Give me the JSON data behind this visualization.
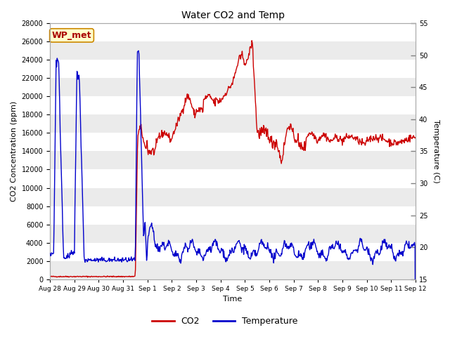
{
  "title": "Water CO2 and Temp",
  "xlabel": "Time",
  "ylabel_left": "CO2 Concentration (ppm)",
  "ylabel_right": "Temperature (C)",
  "ylim_left": [
    0,
    28000
  ],
  "ylim_right": [
    15,
    55
  ],
  "yticks_left": [
    0,
    2000,
    4000,
    6000,
    8000,
    10000,
    12000,
    14000,
    16000,
    18000,
    20000,
    22000,
    24000,
    26000,
    28000
  ],
  "yticks_right": [
    15,
    20,
    25,
    30,
    35,
    40,
    45,
    50,
    55
  ],
  "xtick_labels": [
    "Aug 28",
    "Aug 29",
    "Aug 30",
    "Aug 31",
    "Sep 1",
    "Sep 2",
    "Sep 3",
    "Sep 4",
    "Sep 5",
    "Sep 6",
    "Sep 7",
    "Sep 8",
    "Sep 9",
    "Sep 10",
    "Sep 11",
    "Sep 12"
  ],
  "annotation_text": "WP_met",
  "annotation_bg": "#ffffcc",
  "annotation_edge": "#cc8800",
  "annotation_text_color": "#aa0000",
  "co2_color": "#cc0000",
  "temp_color": "#0000cc",
  "plot_bg": "#ffffff",
  "grid_color": "#dddddd",
  "legend_co2": "CO2",
  "legend_temp": "Temperature",
  "fig_bg": "#ffffff"
}
